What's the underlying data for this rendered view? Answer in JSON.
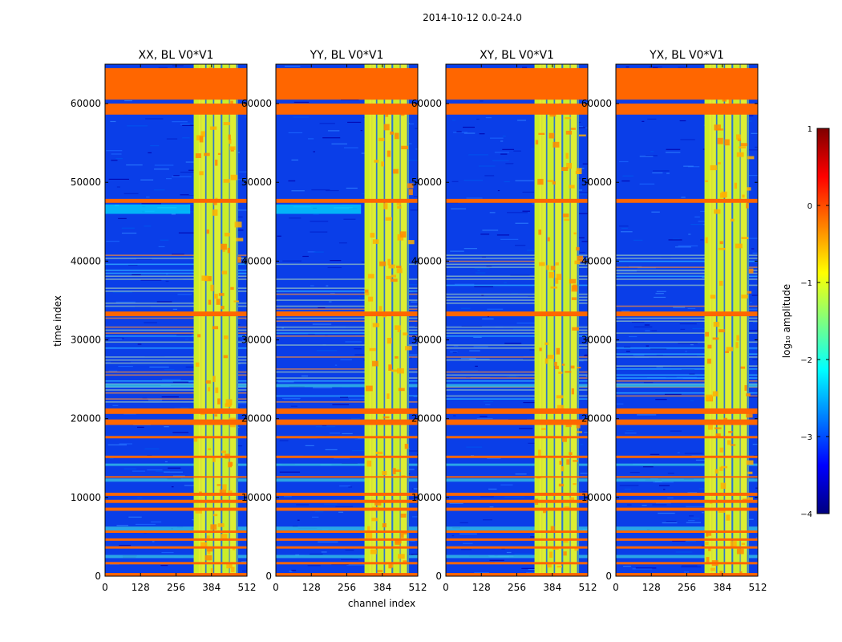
{
  "chart_data": {
    "type": "heatmap",
    "title": "2014-10-12 0.0-24.0",
    "xlabel": "channel index",
    "ylabel": "time index",
    "xlim": [
      0,
      512
    ],
    "ylim": [
      0,
      65000
    ],
    "x_ticks": [
      0,
      128,
      256,
      384,
      512
    ],
    "y_ticks": [
      0,
      10000,
      20000,
      30000,
      40000,
      50000,
      60000
    ],
    "panels": [
      {
        "title": "XX, BL V0*V1"
      },
      {
        "title": "YY, BL V0*V1"
      },
      {
        "title": "XY, BL V0*V1"
      },
      {
        "title": "YX, BL V0*V1"
      }
    ],
    "colorbar": {
      "label": "log₁₀ amplitude",
      "range": [
        -4,
        1
      ],
      "ticks": [
        {
          "value": 1,
          "label": "1"
        },
        {
          "value": 0,
          "label": "0"
        },
        {
          "value": -1,
          "label": "−1"
        },
        {
          "value": -2,
          "label": "−2"
        },
        {
          "value": -3,
          "label": "−3"
        },
        {
          "value": -4,
          "label": "−4"
        }
      ],
      "colormap": [
        "#00007f",
        "#0000ff",
        "#007fff",
        "#00ffff",
        "#7fff7f",
        "#ffff00",
        "#ff7f00",
        "#ff0000",
        "#7f0000"
      ]
    },
    "flagged_time_bands": [
      [
        60500,
        64500
      ],
      [
        58600,
        60000
      ],
      [
        47400,
        47900
      ],
      [
        33000,
        33600
      ],
      [
        20600,
        21300
      ],
      [
        19200,
        19900
      ],
      [
        17500,
        17800
      ],
      [
        15000,
        15300
      ],
      [
        12500,
        12700
      ],
      [
        10200,
        10600
      ],
      [
        9300,
        9700
      ],
      [
        8300,
        8700
      ],
      [
        5500,
        5800
      ],
      [
        4500,
        4800
      ],
      [
        3500,
        3800
      ],
      [
        1500,
        1800
      ],
      [
        0,
        400
      ]
    ],
    "dense_rfi_time_range": [
      22000,
      41000
    ],
    "rfi_channel_range": [
      320,
      480
    ],
    "flag_color": "#ff6600"
  }
}
